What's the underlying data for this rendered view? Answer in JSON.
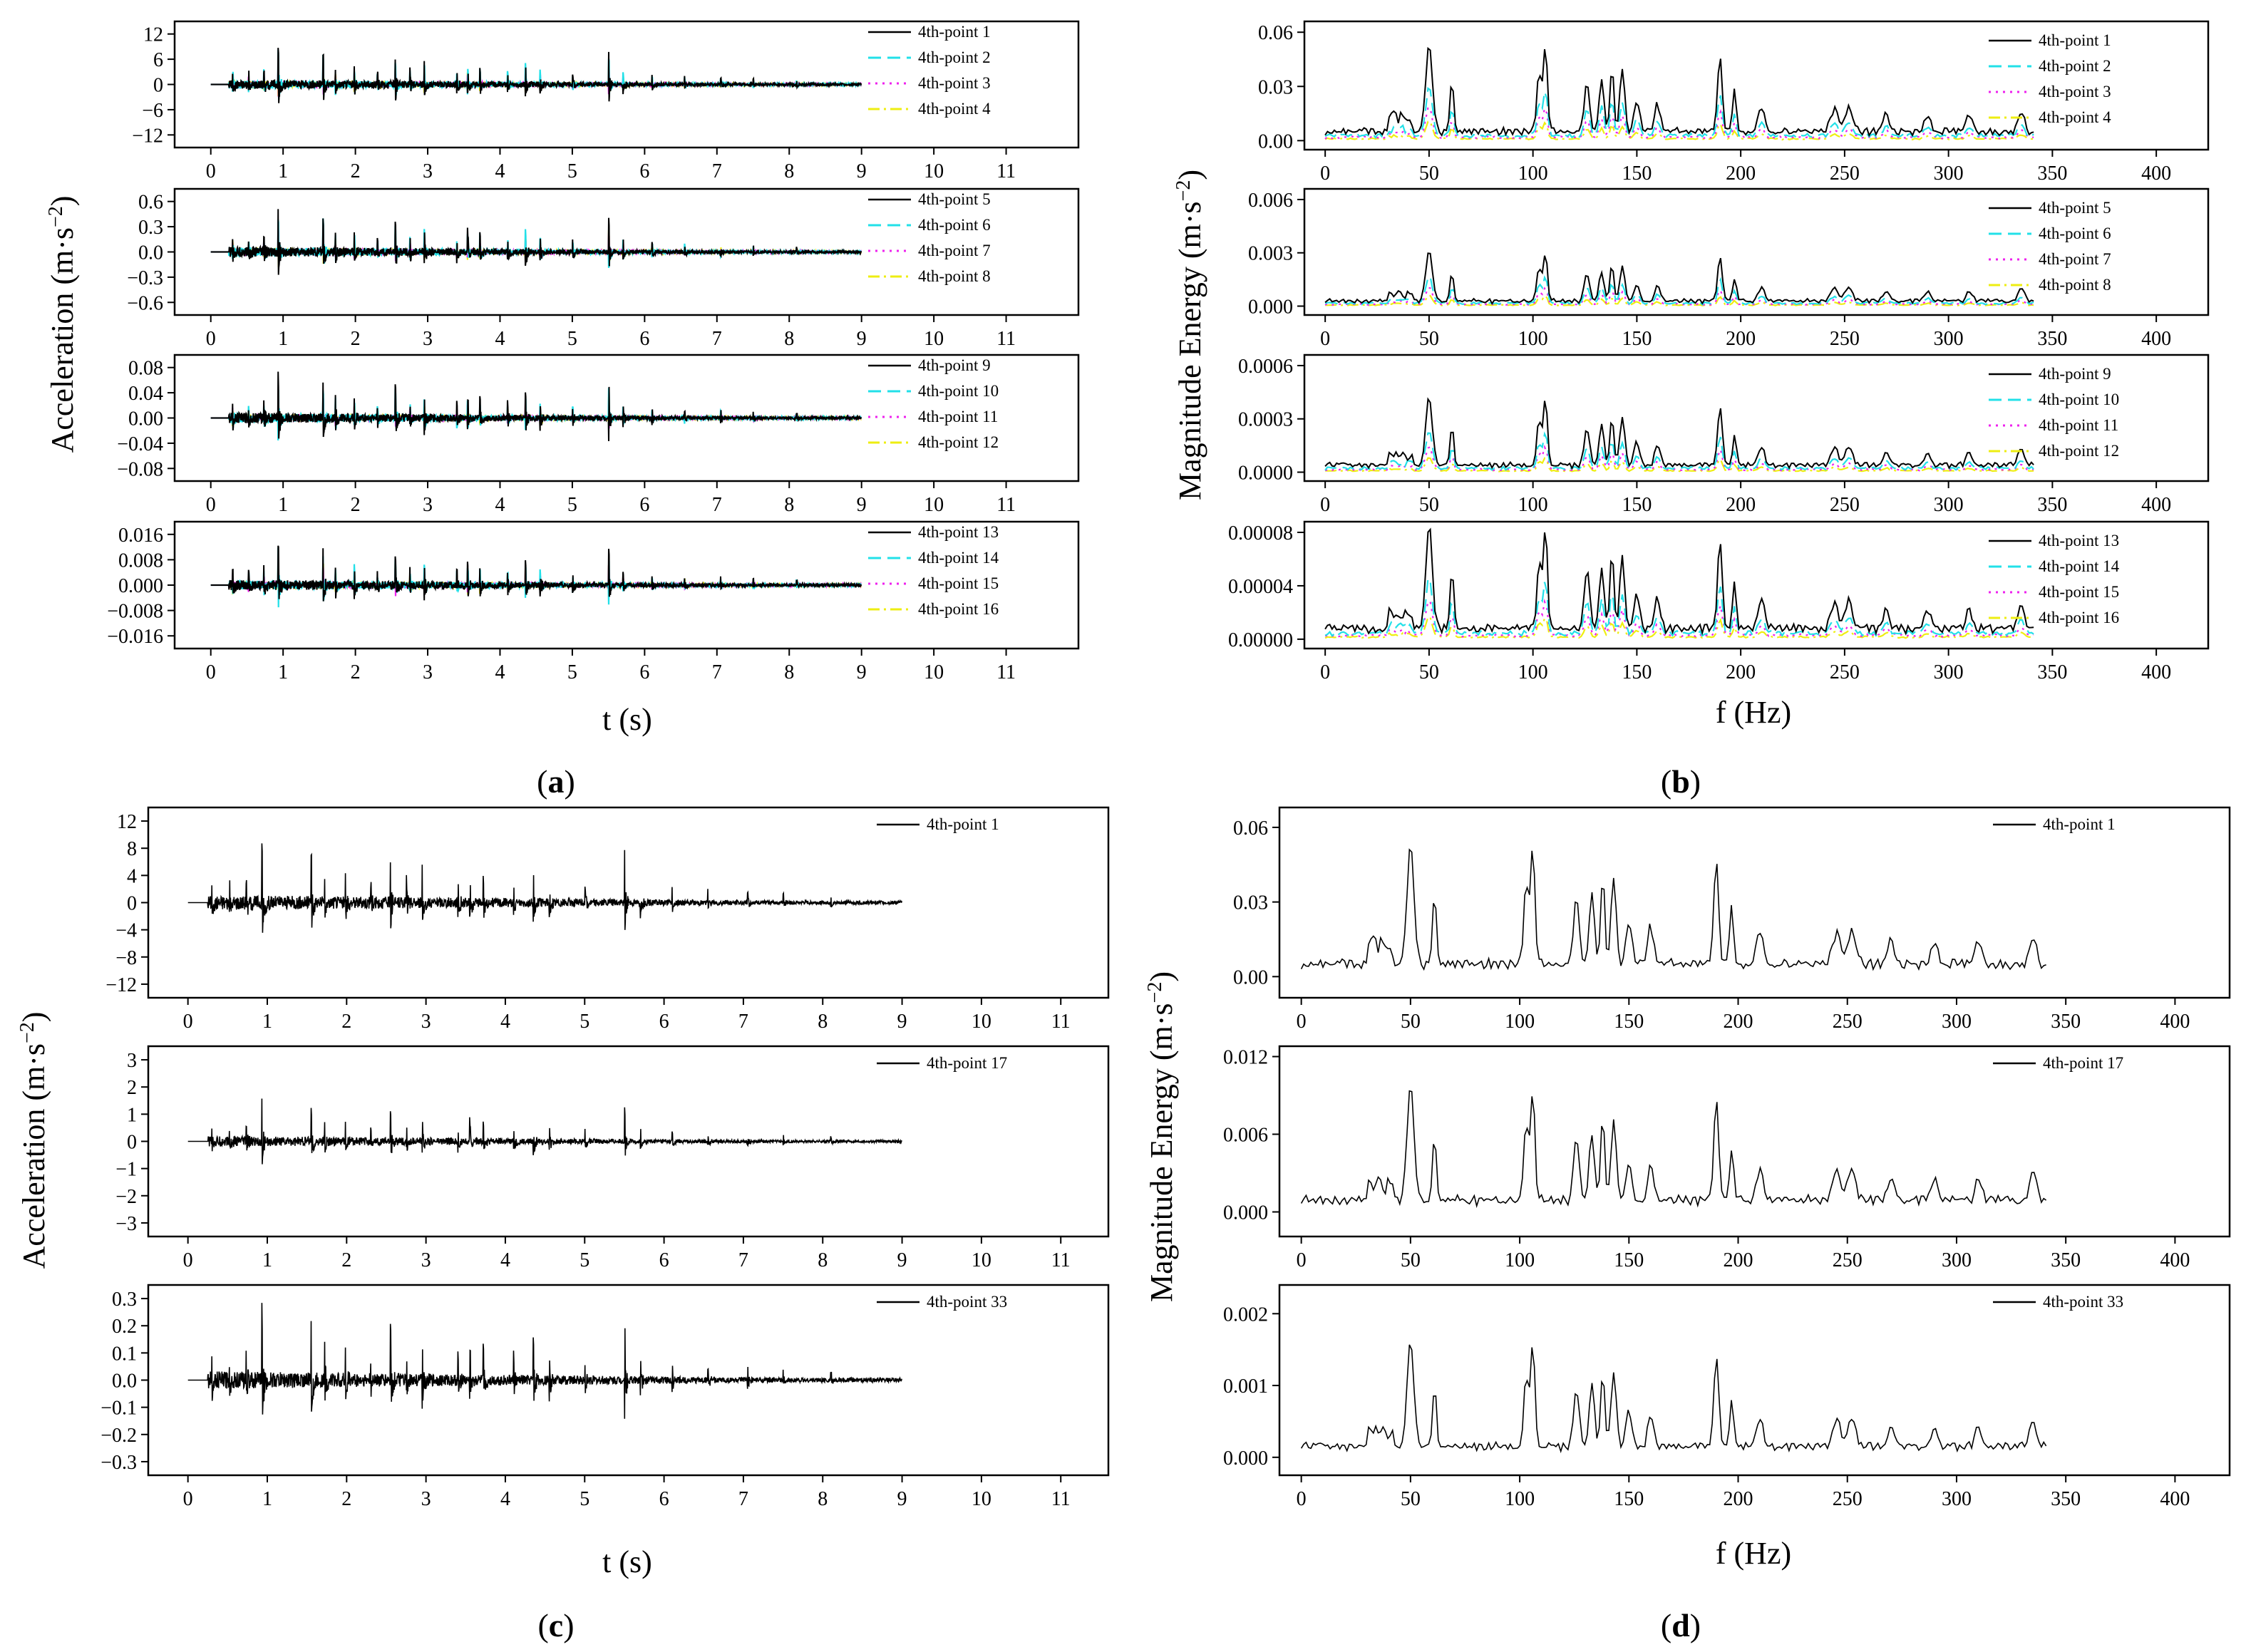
{
  "figure": {
    "captions": {
      "a": [
        "(",
        "a",
        ")"
      ],
      "b": [
        "(",
        "b",
        ")"
      ],
      "c": [
        "(",
        "c",
        ")"
      ],
      "d": [
        "(",
        "d",
        ")"
      ]
    },
    "ylabels": {
      "acceleration": [
        "Acceleration (m·s",
        "−2",
        ")"
      ],
      "magnitude": [
        "Magnitude Energy (m·s",
        "−2",
        ")"
      ]
    },
    "xlabels": {
      "time": "t (s)",
      "freq": "f (Hz)"
    }
  },
  "legend_colors": {
    "black": "#000000",
    "cyan": "#22e0e8",
    "magenta": "#ee22ee",
    "yellow": "#eeee11"
  },
  "chart_data": [
    {
      "panel": "a",
      "type": "line",
      "subplots": [
        {
          "series": [
            "4th-point 1",
            "4th-point 2",
            "4th-point 3",
            "4th-point 4"
          ],
          "ylim": [
            -15,
            15
          ],
          "yticks": [
            "12",
            "6",
            "0",
            "−6",
            "−12"
          ],
          "ytick_values": [
            12,
            6,
            0,
            -6,
            -12
          ],
          "amplitude_scale": 1,
          "xlim": [
            -0.5,
            12
          ],
          "xticks": [
            "0",
            "1",
            "2",
            "3",
            "4",
            "5",
            "6",
            "7",
            "8",
            "9",
            "10",
            "11"
          ]
        },
        {
          "series": [
            "4th-point 5",
            "4th-point 6",
            "4th-point 7",
            "4th-point 8"
          ],
          "ylim": [
            -0.75,
            0.75
          ],
          "yticks": [
            "0.6",
            "0.3",
            "0.0",
            "−0.3",
            "−0.6"
          ],
          "ytick_values": [
            0.6,
            0.3,
            0,
            -0.3,
            -0.6
          ],
          "amplitude_scale": 0.055,
          "xlim": [
            -0.5,
            12
          ],
          "xticks": [
            "0",
            "1",
            "2",
            "3",
            "4",
            "5",
            "6",
            "7",
            "8",
            "9",
            "10",
            "11"
          ]
        },
        {
          "series": [
            "4th-point 9",
            "4th-point 10",
            "4th-point 11",
            "4th-point 12"
          ],
          "ylim": [
            -0.1,
            0.1
          ],
          "yticks": [
            "0.08",
            "0.04",
            "0.00",
            "−0.04",
            "−0.08"
          ],
          "ytick_values": [
            0.08,
            0.04,
            0,
            -0.04,
            -0.08
          ],
          "amplitude_scale": 0.0075,
          "xlim": [
            -0.5,
            12
          ],
          "xticks": [
            "0",
            "1",
            "2",
            "3",
            "4",
            "5",
            "6",
            "7",
            "8",
            "9",
            "10",
            "11"
          ]
        },
        {
          "series": [
            "4th-point 13",
            "4th-point 14",
            "4th-point 15",
            "4th-point 16"
          ],
          "ylim": [
            -0.02,
            0.02
          ],
          "yticks": [
            "0.016",
            "0.008",
            "0.000",
            "−0.008",
            "−0.016"
          ],
          "ytick_values": [
            0.016,
            0.008,
            0,
            -0.008,
            -0.016
          ],
          "amplitude_scale": 0.0015,
          "xlim": [
            -0.5,
            12
          ],
          "xticks": [
            "0",
            "1",
            "2",
            "3",
            "4",
            "5",
            "6",
            "7",
            "8",
            "9",
            "10",
            "11"
          ]
        }
      ],
      "xlabel": "t (s)",
      "ylabel": "Acceleration (m·s−2)"
    },
    {
      "panel": "b",
      "type": "line",
      "subplots": [
        {
          "series": [
            "4th-point 1",
            "4th-point 2",
            "4th-point 3",
            "4th-point 4"
          ],
          "ylim": [
            -0.005,
            0.066
          ],
          "yticks": [
            "0.06",
            "0.03",
            "0.00"
          ],
          "ytick_values": [
            0.06,
            0.03,
            0
          ],
          "peak": 0.049,
          "xlim": [
            -10,
            425
          ],
          "xticks": [
            "0",
            "50",
            "100",
            "150",
            "200",
            "250",
            "300",
            "350",
            "400"
          ]
        },
        {
          "series": [
            "4th-point 5",
            "4th-point 6",
            "4th-point 7",
            "4th-point 8"
          ],
          "ylim": [
            -0.0005,
            0.0066
          ],
          "yticks": [
            "0.006",
            "0.003",
            "0.000"
          ],
          "ytick_values": [
            0.006,
            0.003,
            0
          ],
          "peak": 0.0028,
          "xlim": [
            -10,
            425
          ],
          "xticks": [
            "0",
            "50",
            "100",
            "150",
            "200",
            "250",
            "300",
            "350",
            "400"
          ]
        },
        {
          "series": [
            "4th-point 9",
            "4th-point 10",
            "4th-point 11",
            "4th-point 12"
          ],
          "ylim": [
            -5e-05,
            0.00066
          ],
          "yticks": [
            "0.0006",
            "0.0003",
            "0.0000"
          ],
          "ytick_values": [
            0.0006,
            0.0003,
            0
          ],
          "peak": 0.00038,
          "xlim": [
            -10,
            425
          ],
          "xticks": [
            "0",
            "50",
            "100",
            "150",
            "200",
            "250",
            "300",
            "350",
            "400"
          ]
        },
        {
          "series": [
            "4th-point 13",
            "4th-point 14",
            "4th-point 15",
            "4th-point 16"
          ],
          "ylim": [
            -7e-06,
            8.8e-05
          ],
          "yticks": [
            "0.00008",
            "0.00004",
            "0.00000"
          ],
          "ytick_values": [
            8e-05,
            4e-05,
            0
          ],
          "peak": 7.7e-05,
          "xlim": [
            -10,
            425
          ],
          "xticks": [
            "0",
            "50",
            "100",
            "150",
            "200",
            "250",
            "300",
            "350",
            "400"
          ]
        }
      ],
      "xlabel": "f (Hz)",
      "ylabel": "Magnitude Energy (m·s−2)"
    },
    {
      "panel": "c",
      "type": "line",
      "subplots": [
        {
          "series": [
            "4th-point 1"
          ],
          "ylim": [
            -14,
            14
          ],
          "yticks": [
            "12",
            "8",
            "4",
            "0",
            "−4",
            "−8",
            "−12"
          ],
          "ytick_values": [
            12,
            8,
            4,
            0,
            -4,
            -8,
            -12
          ],
          "amplitude_scale": 1,
          "xlim": [
            -0.5,
            11.6
          ],
          "xticks": [
            "0",
            "1",
            "2",
            "3",
            "4",
            "5",
            "6",
            "7",
            "8",
            "9",
            "10",
            "11"
          ]
        },
        {
          "series": [
            "4th-point 17"
          ],
          "ylim": [
            -3.5,
            3.5
          ],
          "yticks": [
            "3",
            "2",
            "1",
            "0",
            "−1",
            "−2",
            "−3"
          ],
          "ytick_values": [
            3,
            2,
            1,
            0,
            -1,
            -2,
            -3
          ],
          "amplitude_scale": 0.17,
          "xlim": [
            -0.5,
            11.6
          ],
          "xticks": [
            "0",
            "1",
            "2",
            "3",
            "4",
            "5",
            "6",
            "7",
            "8",
            "9",
            "10",
            "11"
          ]
        },
        {
          "series": [
            "4th-point 33"
          ],
          "ylim": [
            -0.35,
            0.35
          ],
          "yticks": [
            "0.3",
            "0.2",
            "0.1",
            "0.0",
            "−0.1",
            "−0.2",
            "−0.3"
          ],
          "ytick_values": [
            0.3,
            0.2,
            0.1,
            0,
            -0.1,
            -0.2,
            -0.3
          ],
          "amplitude_scale": 0.029,
          "xlim": [
            -0.5,
            11.6
          ],
          "xticks": [
            "0",
            "1",
            "2",
            "3",
            "4",
            "5",
            "6",
            "7",
            "8",
            "9",
            "10",
            "11"
          ]
        }
      ],
      "xlabel": "t (s)",
      "ylabel": "Acceleration (m·s−2)"
    },
    {
      "panel": "d",
      "type": "line",
      "subplots": [
        {
          "series": [
            "4th-point 1"
          ],
          "ylim": [
            -0.0085,
            0.068
          ],
          "yticks": [
            "0.06",
            "0.03",
            "0.00"
          ],
          "ytick_values": [
            0.06,
            0.03,
            0
          ],
          "peak": 0.049,
          "xlim": [
            -10,
            425
          ],
          "xticks": [
            "0",
            "50",
            "100",
            "150",
            "200",
            "250",
            "300",
            "350",
            "400"
          ]
        },
        {
          "series": [
            "4th-point 17"
          ],
          "ylim": [
            -0.0019,
            0.0128
          ],
          "yticks": [
            "0.012",
            "0.006",
            "0.000"
          ],
          "ytick_values": [
            0.012,
            0.006,
            0
          ],
          "peak": 0.0088,
          "xlim": [
            -10,
            425
          ],
          "xticks": [
            "0",
            "50",
            "100",
            "150",
            "200",
            "250",
            "300",
            "350",
            "400"
          ]
        },
        {
          "series": [
            "4th-point 33"
          ],
          "ylim": [
            -0.00025,
            0.0024
          ],
          "yticks": [
            "0.002",
            "0.001",
            "0.000"
          ],
          "ytick_values": [
            0.002,
            0.001,
            0
          ],
          "peak": 0.00145,
          "xlim": [
            -10,
            425
          ],
          "xticks": [
            "0",
            "50",
            "100",
            "150",
            "200",
            "250",
            "300",
            "350",
            "400"
          ]
        }
      ],
      "xlabel": "f (Hz)",
      "ylabel": "Magnitude Energy (m·s−2)"
    }
  ]
}
